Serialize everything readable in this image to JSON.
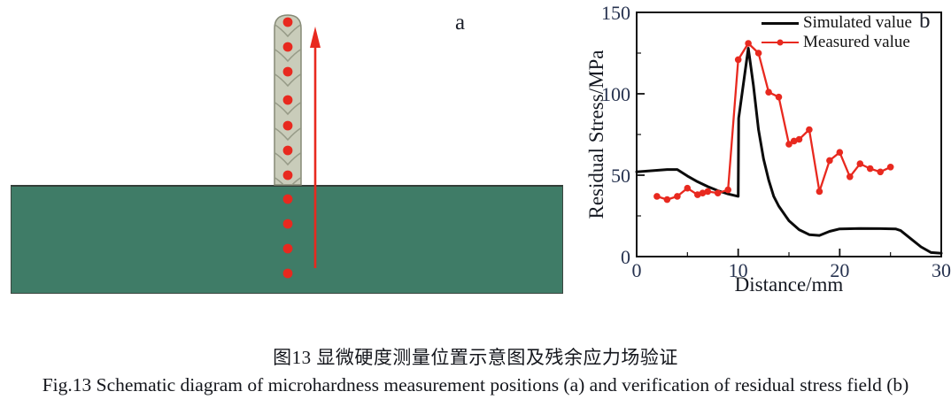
{
  "panel_a": {
    "label": "a",
    "colors": {
      "substrate": "#3f7c67",
      "wall_fill": "#c9ccba",
      "wall_stroke": "#868a76",
      "chevron": "#979b88",
      "dot": "#e8291f",
      "arrow": "#e8291f"
    },
    "wall_dots_y": [
      13,
      41,
      69,
      101,
      130,
      158,
      186
    ],
    "substrate_dots_y": [
      213,
      241,
      269,
      297
    ]
  },
  "chart_data": {
    "type": "line",
    "panel_label": "b",
    "xlabel": "Distance/mm",
    "ylabel": "Residual Stress/MPa",
    "xlim": [
      0,
      30
    ],
    "ylim": [
      0,
      150
    ],
    "x_major_ticks": [
      0,
      10,
      20,
      30
    ],
    "x_minor_ticks": [
      5,
      15,
      25
    ],
    "y_major_ticks": [
      0,
      50,
      100,
      150
    ],
    "y_minor_ticks": [
      25,
      75,
      125
    ],
    "grid": false,
    "legend_position": "top-right-inside",
    "frame": true,
    "tick_label_color": "#26324f",
    "axis_color": "#111111",
    "series": [
      {
        "name": "Simulated value",
        "color": "#0b0b0b",
        "marker": false,
        "points": [
          [
            0,
            52
          ],
          [
            1,
            52.5
          ],
          [
            2,
            53
          ],
          [
            3,
            53.5
          ],
          [
            4,
            53.5
          ],
          [
            5,
            49.5
          ],
          [
            6,
            46
          ],
          [
            7,
            43
          ],
          [
            8,
            40.5
          ],
          [
            9,
            38.5
          ],
          [
            10,
            37
          ],
          [
            10.05,
            85
          ],
          [
            11,
            128
          ],
          [
            11.5,
            105
          ],
          [
            12,
            78
          ],
          [
            12.5,
            60
          ],
          [
            13,
            47
          ],
          [
            13.5,
            37
          ],
          [
            14,
            31
          ],
          [
            15,
            22
          ],
          [
            16,
            16.5
          ],
          [
            17,
            13.5
          ],
          [
            18,
            13
          ],
          [
            19,
            15.5
          ],
          [
            20,
            17
          ],
          [
            22,
            17.3
          ],
          [
            24,
            17.2
          ],
          [
            25.5,
            17
          ],
          [
            26,
            16
          ],
          [
            27,
            11
          ],
          [
            28,
            6
          ],
          [
            29,
            2.5
          ],
          [
            30,
            2
          ]
        ]
      },
      {
        "name": "Measured value",
        "color": "#e8291f",
        "marker": true,
        "points": [
          [
            2,
            37
          ],
          [
            3,
            35
          ],
          [
            4,
            37
          ],
          [
            5,
            42
          ],
          [
            6,
            38
          ],
          [
            6.5,
            39
          ],
          [
            7,
            40
          ],
          [
            8,
            39
          ],
          [
            9,
            41
          ],
          [
            10,
            121
          ],
          [
            11,
            131
          ],
          [
            12,
            125
          ],
          [
            13,
            101
          ],
          [
            14,
            98
          ],
          [
            15,
            69
          ],
          [
            15.5,
            71
          ],
          [
            16,
            72
          ],
          [
            17,
            78
          ],
          [
            18,
            40
          ],
          [
            19,
            59
          ],
          [
            20,
            64
          ],
          [
            21,
            49
          ],
          [
            22,
            57
          ],
          [
            23,
            54
          ],
          [
            24,
            52
          ],
          [
            25,
            55
          ]
        ]
      }
    ]
  },
  "caption": {
    "chinese": "图13  显微硬度测量位置示意图及残余应力场验证",
    "english": "Fig.13  Schematic diagram of microhardness measurement positions (a) and verification of residual stress field (b)"
  }
}
